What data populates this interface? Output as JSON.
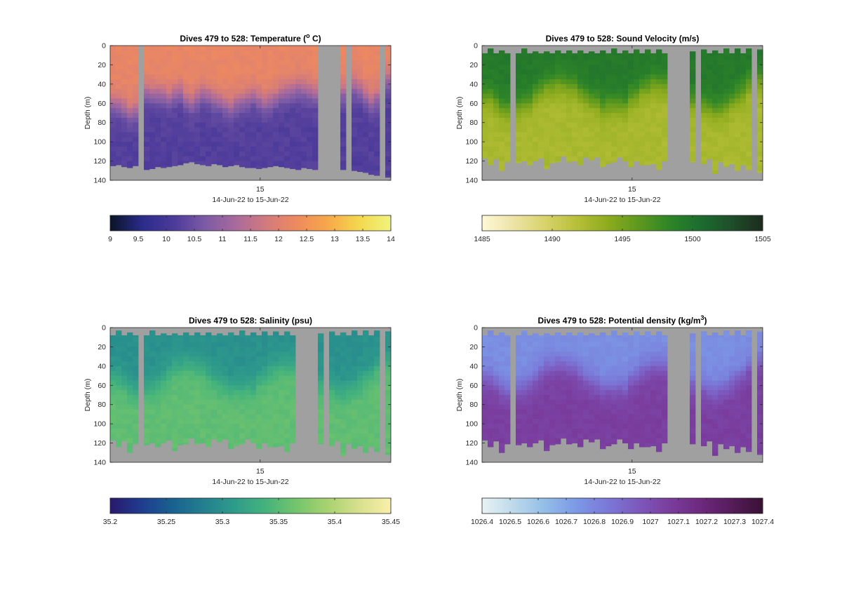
{
  "colors": {
    "nodata": "#a0a0a0",
    "frame": "#262626",
    "background": "#ffffff"
  },
  "chart_data": [
    {
      "type": "heatmap",
      "title": "Dives 479 to 528: Temperature (",
      "title_sup": "o",
      "title_end": " C)",
      "ylabel": "Depth (m)",
      "xlabel": "14-Jun-22 to 15-Jun-22",
      "ylim": [
        0,
        140
      ],
      "y_reversed": true,
      "yticks": [
        0,
        20,
        40,
        60,
        80,
        100,
        120,
        140
      ],
      "xticks": [
        {
          "label": "15",
          "value": 15.0
        }
      ],
      "xlim": [
        14.69,
        15.27
      ],
      "num_profiles": 50,
      "colorbar": {
        "location": "below",
        "range": [
          9,
          14
        ],
        "ticks": [
          "9",
          "9.5",
          "10",
          "10.5",
          "11",
          "11.5",
          "12",
          "12.5",
          "13",
          "13.5",
          "14"
        ],
        "colormap": [
          "#0a1628",
          "#2b2c8a",
          "#4b3a9a",
          "#7a5aa6",
          "#a86a9c",
          "#d27a7e",
          "#ef8a5e",
          "#f7a84a",
          "#f4d74e",
          "#f0f37a"
        ]
      },
      "surface_value": 12.2,
      "deep_value": 10.2,
      "missing_profiles": [
        5,
        37,
        38,
        39,
        40,
        42,
        48
      ],
      "thermocline_depth": [
        60,
        62,
        65,
        70,
        68,
        0,
        48,
        50,
        50,
        52,
        55,
        50,
        48,
        56,
        60,
        54,
        50,
        52,
        56,
        58,
        62,
        64,
        60,
        58,
        55,
        52,
        56,
        60,
        58,
        54,
        50,
        48,
        46,
        44,
        45,
        48,
        50,
        0,
        0,
        0,
        0,
        48,
        0,
        42,
        45,
        52,
        58,
        54,
        50,
        0
      ],
      "max_depth": [
        125,
        124,
        126,
        127,
        125,
        0,
        129,
        128,
        126,
        127,
        126,
        125,
        124,
        122,
        121,
        123,
        124,
        125,
        123,
        124,
        126,
        125,
        124,
        126,
        127,
        127,
        128,
        127,
        126,
        125,
        126,
        127,
        128,
        129,
        127,
        128,
        129,
        0,
        0,
        0,
        0,
        129,
        0,
        130,
        131,
        132,
        134,
        135,
        136,
        137
      ]
    },
    {
      "type": "heatmap",
      "title": "Dives 479 to 528: Sound Velocity (m/s)",
      "ylabel": "Depth (m)",
      "xlabel": "14-Jun-22 to 15-Jun-22",
      "ylim": [
        0,
        140
      ],
      "y_reversed": true,
      "yticks": [
        0,
        20,
        40,
        60,
        80,
        100,
        120,
        140
      ],
      "xticks": [
        {
          "label": "15",
          "value": 15.0
        }
      ],
      "xlim": [
        14.69,
        15.27
      ],
      "num_profiles": 50,
      "colorbar": {
        "location": "below",
        "range": [
          1485,
          1505
        ],
        "ticks": [
          "1485",
          "1490",
          "1495",
          "1500",
          "1505"
        ],
        "colormap": [
          "#fdf8d5",
          "#ece3a6",
          "#d7d36a",
          "#b8c03a",
          "#8fac1e",
          "#5f991e",
          "#2f8627",
          "#1c6d2f",
          "#1f4f2a",
          "#1c2e1f"
        ]
      },
      "surface_value": 1499.5,
      "deep_value": 1492.5,
      "missing_profiles": [
        5,
        33,
        34,
        35,
        36,
        38,
        48
      ]
    },
    {
      "type": "heatmap",
      "title": "Dives 479 to 528: Salinity (psu)",
      "ylabel": "Depth (m)",
      "xlabel": "14-Jun-22 to 15-Jun-22",
      "ylim": [
        0,
        140
      ],
      "y_reversed": true,
      "yticks": [
        0,
        20,
        40,
        60,
        80,
        100,
        120,
        140
      ],
      "xticks": [
        {
          "label": "15",
          "value": 15.0
        }
      ],
      "xlim": [
        14.69,
        15.27
      ],
      "num_profiles": 50,
      "colorbar": {
        "location": "below",
        "range": [
          35.2,
          35.45
        ],
        "ticks": [
          "35.2",
          "35.25",
          "35.3",
          "35.35",
          "35.4",
          "35.45"
        ],
        "colormap": [
          "#2a1a6e",
          "#1f3d8f",
          "#1a6290",
          "#23808f",
          "#2f9c8b",
          "#45b37c",
          "#75c56c",
          "#a9d270",
          "#d6e08c",
          "#f8efa9"
        ]
      },
      "surface_value": 35.3,
      "deep_value": 35.355,
      "missing_profiles": [
        5,
        33,
        34,
        35,
        36,
        38,
        48
      ]
    },
    {
      "type": "heatmap",
      "title": "Dives 479 to 528: Potential density (kg/m",
      "title_sup": "3",
      "title_end": ")",
      "ylabel": "Depth (m)",
      "xlabel": "14-Jun-22 to 15-Jun-22",
      "ylim": [
        0,
        140
      ],
      "y_reversed": true,
      "yticks": [
        0,
        20,
        40,
        60,
        80,
        100,
        120,
        140
      ],
      "xticks": [
        {
          "label": "15",
          "value": 15.0
        }
      ],
      "xlim": [
        14.69,
        15.27
      ],
      "num_profiles": 50,
      "colorbar": {
        "location": "below",
        "range": [
          1026.4,
          1027.4
        ],
        "ticks": [
          "1026.4",
          "1026.5",
          "1026.6",
          "1026.7",
          "1026.8",
          "1026.9",
          "1027",
          "1027.1",
          "1027.2",
          "1027.3",
          "1027.4"
        ],
        "colormap": [
          "#e8f2f4",
          "#bcd9ea",
          "#93bde8",
          "#7c99e6",
          "#7a79d8",
          "#7d59bd",
          "#7a3d9e",
          "#6e2a7f",
          "#561c5c",
          "#3a1235"
        ]
      },
      "surface_value": 1026.77,
      "deep_value": 1027.06,
      "missing_profiles": [
        5,
        33,
        34,
        35,
        36,
        38,
        48
      ]
    }
  ]
}
